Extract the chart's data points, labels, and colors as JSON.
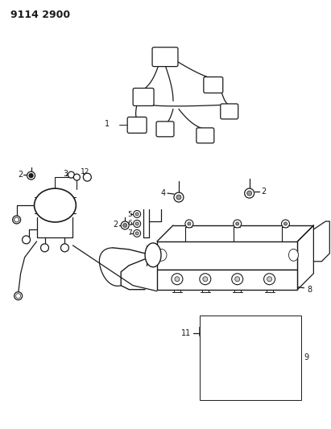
{
  "title": "9114 2900",
  "bg_color": "#ffffff",
  "line_color": "#1a1a1a",
  "figsize": [
    4.11,
    5.33
  ],
  "dpi": 100
}
